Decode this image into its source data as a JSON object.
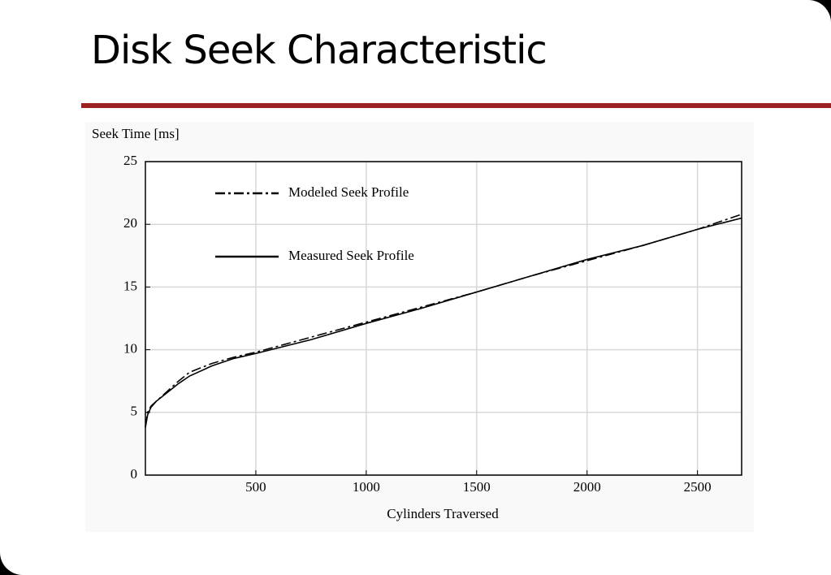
{
  "title": "Disk Seek Characteristic",
  "chart_data": {
    "type": "line",
    "y_label": "Seek Time [ms]",
    "x_label": "Cylinders Traversed",
    "x": [
      0,
      10,
      25,
      50,
      100,
      150,
      200,
      300,
      400,
      500,
      750,
      1000,
      1250,
      1500,
      1750,
      2000,
      2250,
      2500,
      2700
    ],
    "series": [
      {
        "name": "Modeled Seek Profile",
        "color": "#000000",
        "linestyle": "dashdot",
        "values": [
          3.9,
          5.0,
          5.5,
          5.9,
          6.7,
          7.5,
          8.2,
          8.9,
          9.4,
          9.8,
          11.0,
          12.2,
          13.4,
          14.6,
          15.9,
          17.1,
          18.3,
          19.6,
          20.8
        ]
      },
      {
        "name": "Measured Seek Profile",
        "color": "#000000",
        "linestyle": "solid",
        "values": [
          3.8,
          4.8,
          5.4,
          5.9,
          6.6,
          7.3,
          7.9,
          8.7,
          9.3,
          9.7,
          10.8,
          12.1,
          13.3,
          14.6,
          15.9,
          17.2,
          18.3,
          19.6,
          20.5
        ]
      }
    ],
    "xlim": [
      0,
      2700
    ],
    "ylim": [
      0,
      25
    ],
    "xticks": [
      500,
      1000,
      1500,
      2000,
      2500
    ],
    "yticks": [
      0,
      5,
      10,
      15,
      20,
      25
    ],
    "grid": true,
    "legend": "upper left"
  }
}
